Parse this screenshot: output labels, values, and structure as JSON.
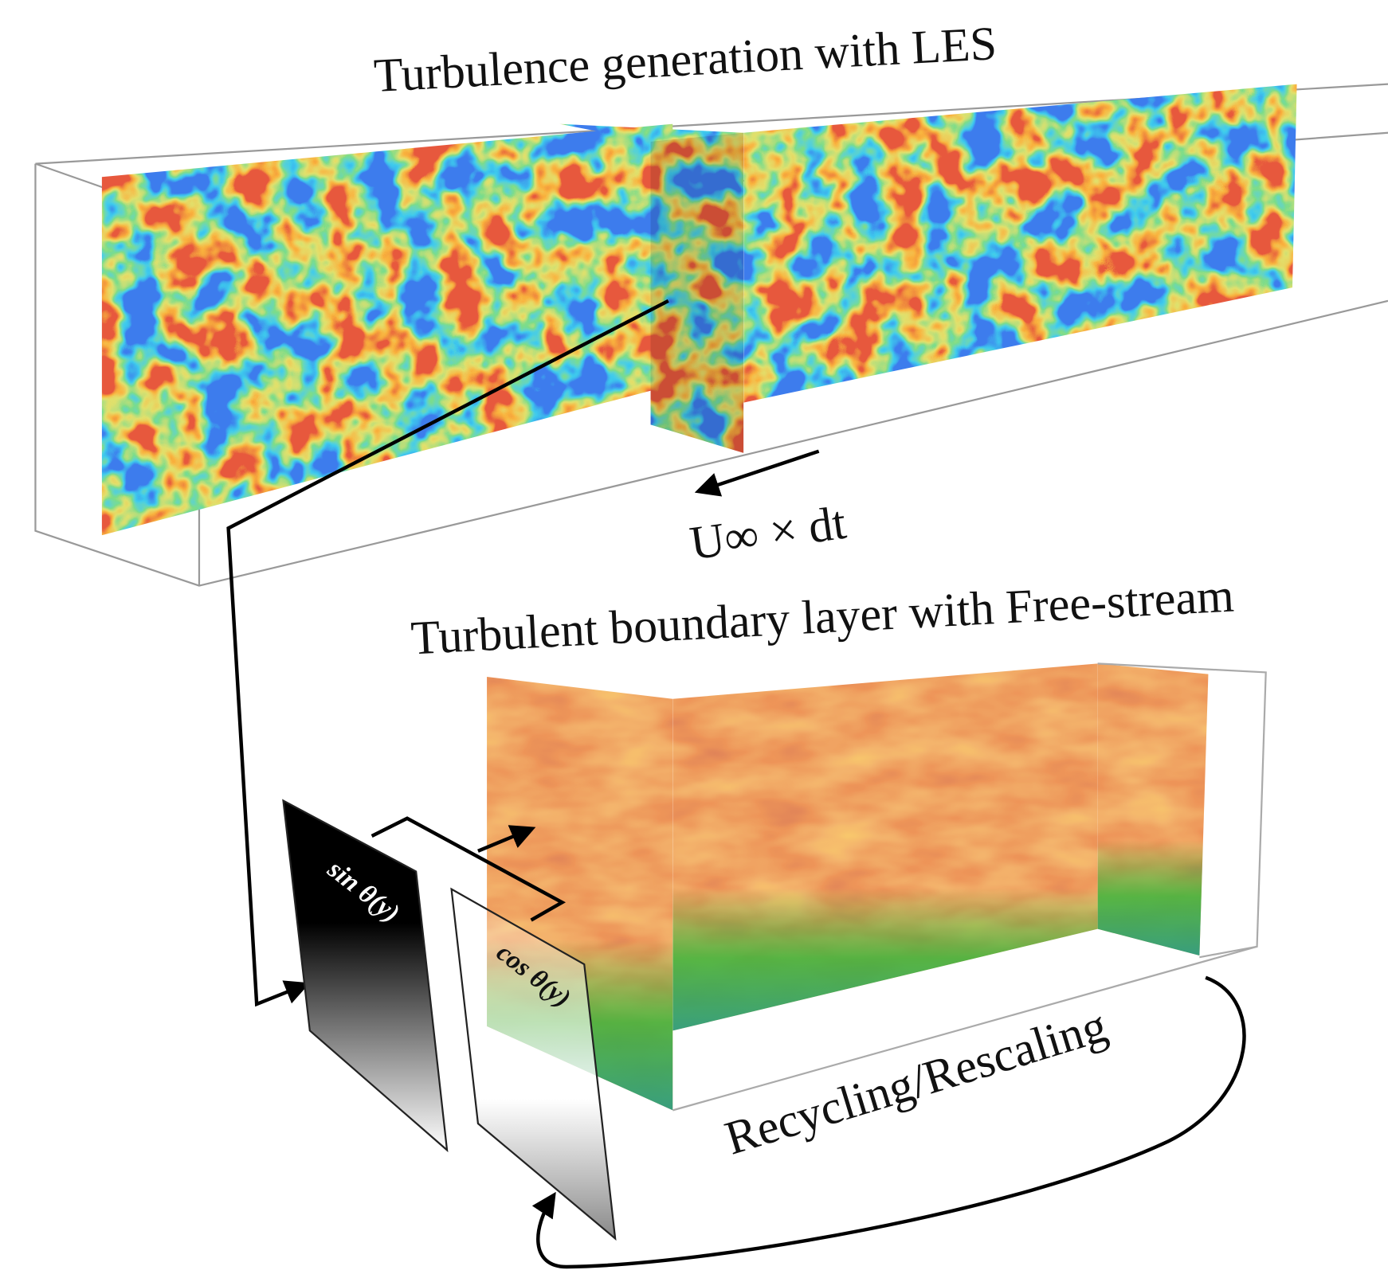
{
  "labels": {
    "top_title": "Turbulence generation with LES",
    "velocity": "U∞ × dt",
    "bottom_title": "Turbulent boundary layer with Free-stream",
    "sin_plate": "sin θ(y)",
    "cos_plate": "cos θ(y)",
    "loop": "Recycling/Rescaling"
  }
}
